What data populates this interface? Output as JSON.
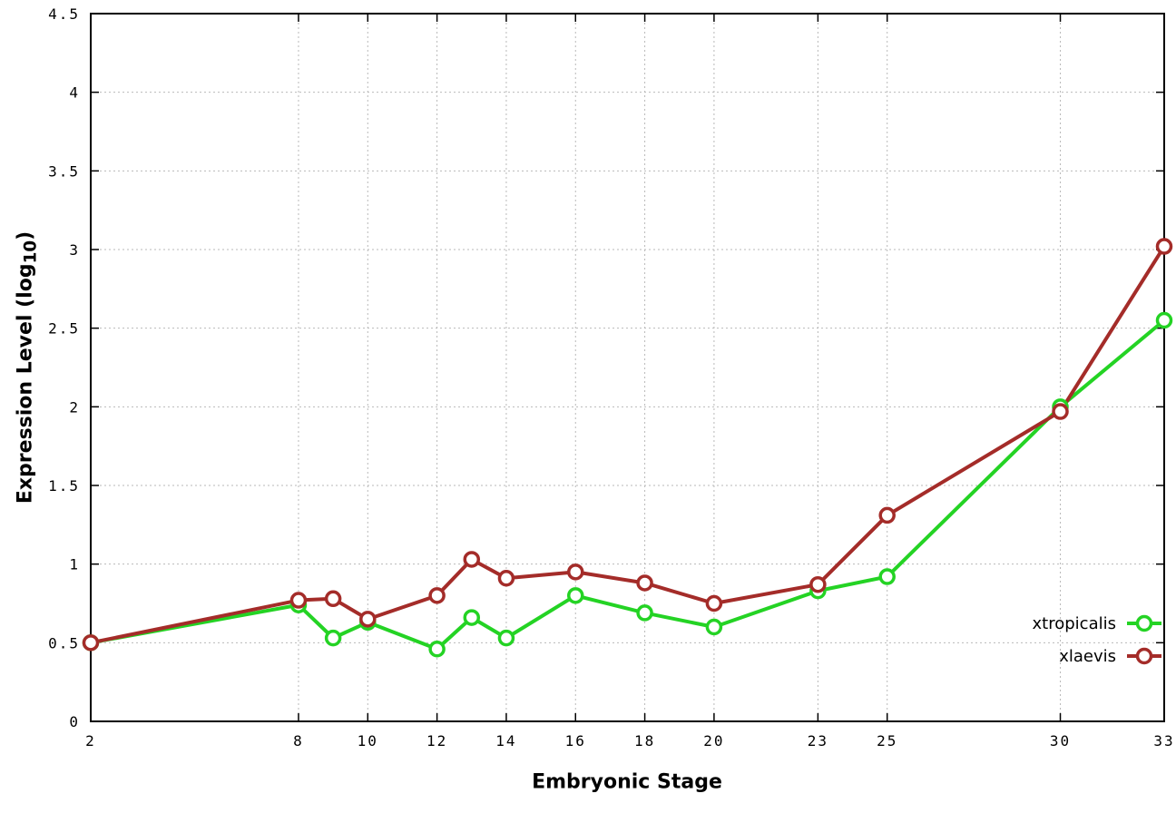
{
  "chart_data": {
    "type": "line",
    "title": "",
    "xlabel": "Embryonic Stage",
    "ylabel_prefix": "Expression Level (log",
    "ylabel_sub": "10",
    "ylabel_suffix": ")",
    "x": [
      2,
      8,
      9,
      10,
      12,
      13,
      14,
      16,
      18,
      20,
      23,
      25,
      30,
      33
    ],
    "x_tick_labels": [
      2,
      8,
      10,
      12,
      14,
      16,
      18,
      20,
      23,
      25,
      30,
      33
    ],
    "y_ticks": [
      0,
      0.5,
      1,
      1.5,
      2,
      2.5,
      3,
      3.5,
      4,
      4.5
    ],
    "xlim": [
      2,
      33
    ],
    "ylim": [
      0,
      4.5
    ],
    "grid": true,
    "legend_position": "bottom-right",
    "marker": "open-circle",
    "series": [
      {
        "name": "xtropicalis",
        "color": "#24d324",
        "values": [
          0.5,
          0.74,
          0.53,
          0.63,
          0.46,
          0.66,
          0.53,
          0.8,
          0.69,
          0.6,
          0.83,
          0.92,
          2.0,
          2.55
        ]
      },
      {
        "name": "xlaevis",
        "color": "#a42c29",
        "values": [
          0.5,
          0.77,
          0.78,
          0.65,
          0.8,
          1.03,
          0.91,
          0.95,
          0.88,
          0.75,
          0.87,
          1.31,
          1.97,
          3.02
        ]
      }
    ]
  }
}
